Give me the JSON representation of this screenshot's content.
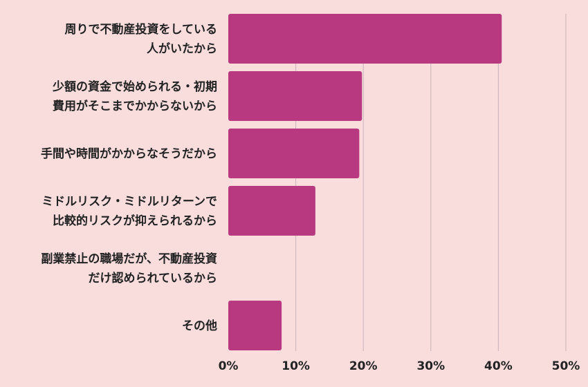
{
  "chart_data": {
    "type": "bar",
    "orientation": "horizontal",
    "categories": [
      [
        "周りで不動産投資をしている",
        "人がいたから"
      ],
      [
        "少額の資金で始められる・初期",
        "費用がそこまでかからないから"
      ],
      [
        "手間や時間がかからなそうだから"
      ],
      [
        "ミドルリスク・ミドルリターンで",
        "比較的リスクが抑えられるから"
      ],
      [
        "副業禁止の職場だが、不動産投資",
        "だけ認められているから"
      ],
      [
        "その他"
      ]
    ],
    "values": [
      40.5,
      19.8,
      19.4,
      12.9,
      0,
      7.9
    ],
    "xlim": [
      0,
      50
    ],
    "ticks": [
      0,
      10,
      20,
      30,
      40,
      50
    ],
    "tick_labels": [
      "0%",
      "10%",
      "20%",
      "30%",
      "40%",
      "50%"
    ],
    "grid": true,
    "colors": {
      "background": "#f9dddd",
      "bar": "#b83980",
      "grid": "#c9b3b8",
      "text": "#222222"
    }
  }
}
